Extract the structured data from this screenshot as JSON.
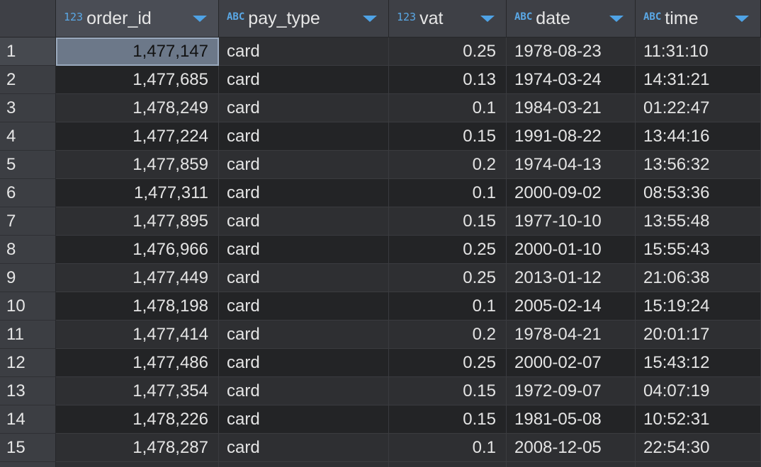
{
  "columns": [
    {
      "name": "order_id",
      "type": "123"
    },
    {
      "name": "pay_type",
      "type": "ABC"
    },
    {
      "name": "vat",
      "type": "123"
    },
    {
      "name": "date",
      "type": "ABC"
    },
    {
      "name": "time",
      "type": "ABC"
    }
  ],
  "rows": [
    {
      "n": "1",
      "order_id": "1,477,147",
      "pay_type": "card",
      "vat": "0.25",
      "date": "1978-08-23",
      "time": "11:31:10"
    },
    {
      "n": "2",
      "order_id": "1,477,685",
      "pay_type": "card",
      "vat": "0.13",
      "date": "1974-03-24",
      "time": "14:31:21"
    },
    {
      "n": "3",
      "order_id": "1,478,249",
      "pay_type": "card",
      "vat": "0.1",
      "date": "1984-03-21",
      "time": "01:22:47"
    },
    {
      "n": "4",
      "order_id": "1,477,224",
      "pay_type": "card",
      "vat": "0.15",
      "date": "1991-08-22",
      "time": "13:44:16"
    },
    {
      "n": "5",
      "order_id": "1,477,859",
      "pay_type": "card",
      "vat": "0.2",
      "date": "1974-04-13",
      "time": "13:56:32"
    },
    {
      "n": "6",
      "order_id": "1,477,311",
      "pay_type": "card",
      "vat": "0.1",
      "date": "2000-09-02",
      "time": "08:53:36"
    },
    {
      "n": "7",
      "order_id": "1,477,895",
      "pay_type": "card",
      "vat": "0.15",
      "date": "1977-10-10",
      "time": "13:55:48"
    },
    {
      "n": "8",
      "order_id": "1,476,966",
      "pay_type": "card",
      "vat": "0.25",
      "date": "2000-01-10",
      "time": "15:55:43"
    },
    {
      "n": "9",
      "order_id": "1,477,449",
      "pay_type": "card",
      "vat": "0.25",
      "date": "2013-01-12",
      "time": "21:06:38"
    },
    {
      "n": "10",
      "order_id": "1,478,198",
      "pay_type": "card",
      "vat": "0.1",
      "date": "2005-02-14",
      "time": "15:19:24"
    },
    {
      "n": "11",
      "order_id": "1,477,414",
      "pay_type": "card",
      "vat": "0.2",
      "date": "1978-04-21",
      "time": "20:01:17"
    },
    {
      "n": "12",
      "order_id": "1,477,486",
      "pay_type": "card",
      "vat": "0.25",
      "date": "2000-02-07",
      "time": "15:43:12"
    },
    {
      "n": "13",
      "order_id": "1,477,354",
      "pay_type": "card",
      "vat": "0.15",
      "date": "1972-09-07",
      "time": "04:07:19"
    },
    {
      "n": "14",
      "order_id": "1,478,226",
      "pay_type": "card",
      "vat": "0.15",
      "date": "1981-05-08",
      "time": "10:52:31"
    },
    {
      "n": "15",
      "order_id": "1,478,287",
      "pay_type": "card",
      "vat": "0.1",
      "date": "2008-12-05",
      "time": "22:54:30"
    }
  ],
  "selected_row": 0,
  "colors": {
    "accent": "#4fa3e6",
    "selection": "#6c7889",
    "header": "#3e4046"
  }
}
